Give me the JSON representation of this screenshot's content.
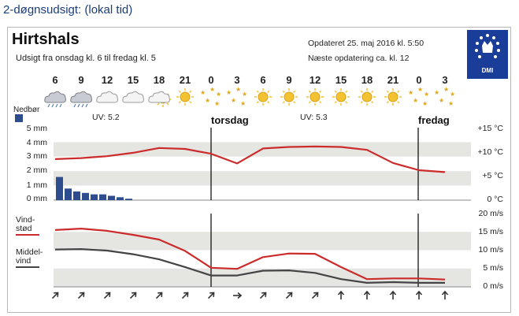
{
  "page_title": "2-døgnsudsigt: (lokal tid)",
  "location": {
    "city": "Hirtshals",
    "forecast_range": "Udsigt fra onsdag kl. 6 til fredag kl. 5",
    "updated": "Opdateret 25. maj 2016 kl. 5:50",
    "next_update": "Næste opdatering ca. kl. 12"
  },
  "logo": {
    "text": "DMI",
    "icon": "dmi-crown-logo"
  },
  "hours": [
    "6",
    "9",
    "12",
    "15",
    "18",
    "21",
    "0",
    "3",
    "6",
    "9",
    "12",
    "15",
    "18",
    "21",
    "0",
    "3"
  ],
  "weather_icons": [
    "rain-cloud-icon",
    "rain-cloud-icon",
    "cloud-icon",
    "cloud-icon",
    "partly-sunny-icon",
    "sun-icon",
    "clear-night-icon",
    "clear-night-icon",
    "sun-icon",
    "sun-icon",
    "sun-icon",
    "sun-icon",
    "sun-icon",
    "sun-icon",
    "clear-night-icon",
    "clear-night-icon"
  ],
  "precip_label": "Nedbør",
  "uv": [
    {
      "text": "UV: 5.2"
    },
    {
      "text": "UV: 5.3"
    }
  ],
  "days": [
    "torsdag",
    "fredag"
  ],
  "precip_axis": [
    "5 mm",
    "4 mm",
    "3 mm",
    "2 mm",
    "1 mm",
    "0 mm"
  ],
  "temp_axis": [
    "+15 °C",
    "+10 °C",
    "+5 °C",
    "0 °C"
  ],
  "wind_axis": [
    "20 m/s",
    "15 m/s",
    "10 m/s",
    "5 m/s",
    "0 m/s"
  ],
  "wind_legend": {
    "gust": "Vind-\nstød",
    "mean": "Middel-\nvind"
  },
  "colors": {
    "temperature": "#cc2b2b",
    "gust": "#cc2b2b",
    "mean_wind": "#444444",
    "precip": "#2d4d8f",
    "band": "#e5e6e1"
  },
  "chart_data": [
    {
      "type": "line",
      "title": "",
      "ylabel": "°C",
      "ylim": [
        0,
        15
      ],
      "x": [
        "6",
        "9",
        "12",
        "15",
        "18",
        "21",
        "0",
        "3",
        "6",
        "9",
        "12",
        "15",
        "18",
        "21",
        "0",
        "3"
      ],
      "series": [
        {
          "values": [
            8.5,
            8.7,
            9.1,
            9.8,
            10.8,
            10.6,
            9.6,
            7.6,
            10.7,
            11.0,
            11.1,
            11.0,
            10.4,
            7.7,
            6.2,
            5.8
          ]
        }
      ]
    },
    {
      "type": "bar",
      "title": "Nedbør",
      "ylabel": "mm",
      "ylim": [
        0,
        5
      ],
      "x": [
        "6",
        "7",
        "8",
        "9",
        "10",
        "11",
        "12",
        "13",
        "14"
      ],
      "values": [
        1.6,
        0.8,
        0.6,
        0.5,
        0.4,
        0.4,
        0.3,
        0.2,
        0.1
      ]
    },
    {
      "type": "line",
      "title": "",
      "ylabel": "m/s",
      "ylim": [
        0,
        20
      ],
      "x": [
        "6",
        "9",
        "12",
        "15",
        "18",
        "21",
        "0",
        "3",
        "6",
        "9",
        "12",
        "15",
        "18",
        "21",
        "0",
        "3"
      ],
      "series": [
        {
          "name": "Vind-stød",
          "values": [
            15.5,
            15.9,
            15.3,
            14.2,
            12.9,
            9.8,
            5.2,
            4.9,
            8.1,
            9.1,
            9.0,
            5.4,
            2.1,
            2.3,
            2.3,
            2.0
          ]
        },
        {
          "name": "Middel-vind",
          "values": [
            10.2,
            10.3,
            9.9,
            8.9,
            7.5,
            5.4,
            3.1,
            3.1,
            4.4,
            4.5,
            3.8,
            2.1,
            1.1,
            1.3,
            1.1,
            1.1
          ]
        }
      ]
    }
  ],
  "wind_directions": [
    "NE",
    "NE",
    "NE",
    "NE",
    "NE",
    "NE",
    "NE",
    "E",
    "NE",
    "NE",
    "NE",
    "N",
    "N",
    "N",
    "N",
    "N"
  ]
}
